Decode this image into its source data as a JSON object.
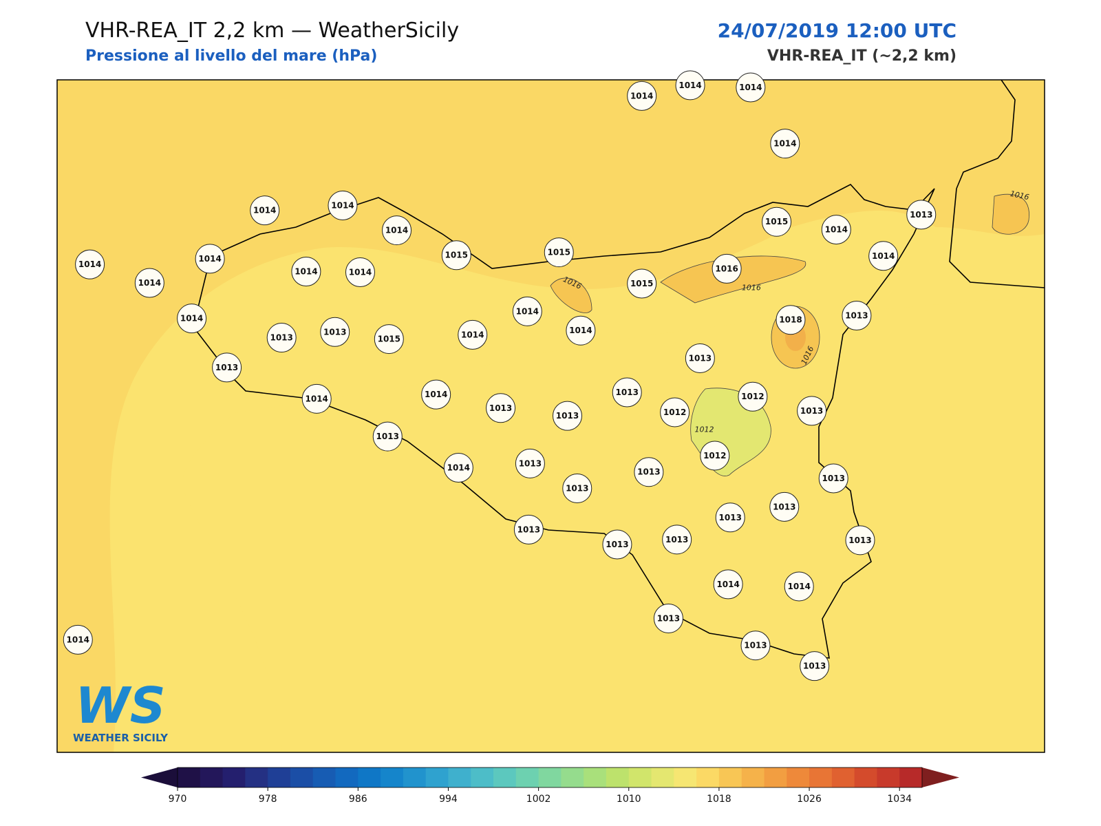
{
  "header": {
    "title": "VHR-REA_IT 2,2 km — WeatherSicily",
    "subtitle": "Pressione al livello del mare (hPa)",
    "datetime": "24/07/2019 12:00 UTC",
    "model": "VHR-REA_IT (~2,2 km)"
  },
  "stations": [
    1014,
    1014,
    1014,
    1014,
    1014,
    1014,
    1014,
    1014,
    1014,
    1014,
    1014,
    1014,
    1015,
    1015,
    1015,
    1014,
    1013,
    1014,
    1016,
    1015,
    1013,
    1018,
    1014,
    1013,
    1013,
    1015,
    1014,
    1014,
    1014,
    1013,
    1013,
    1014,
    1014,
    1013,
    1013,
    1013,
    1012,
    1012,
    1013,
    1013,
    1012,
    1014,
    1013,
    1013,
    1013,
    1013,
    1013,
    1013,
    1013,
    1013,
    1013,
    1013,
    1014,
    1014,
    1013,
    1013,
    1013,
    1014
  ],
  "contour_labels": [
    1016,
    1016,
    1016,
    1016,
    1012
  ],
  "logo": {
    "mark": "WS",
    "text": "WEATHER SICILY"
  },
  "colorbar": {
    "ticks": [
      970,
      978,
      986,
      994,
      1002,
      1010,
      1018,
      1026,
      1034
    ],
    "colors": [
      "#1f1147",
      "#23175a",
      "#241f6e",
      "#243083",
      "#1f3f96",
      "#1b4ea6",
      "#175cb3",
      "#1269bf",
      "#0f77c6",
      "#1585cb",
      "#2193cd",
      "#2fa2cf",
      "#3fb0cd",
      "#4dbdc8",
      "#5cc8be",
      "#6dd1b0",
      "#80d79f",
      "#95dc8d",
      "#a9e07b",
      "#bde26c",
      "#d1e56b",
      "#e4e770",
      "#f6e672",
      "#fbd965",
      "#f8c655",
      "#f5b24a",
      "#f29e41",
      "#ee893a",
      "#e87535",
      "#e06130",
      "#d44b2c",
      "#c83a2b",
      "#b72a29"
    ],
    "under": "#1b0e3a",
    "over": "#7f1f1f"
  }
}
